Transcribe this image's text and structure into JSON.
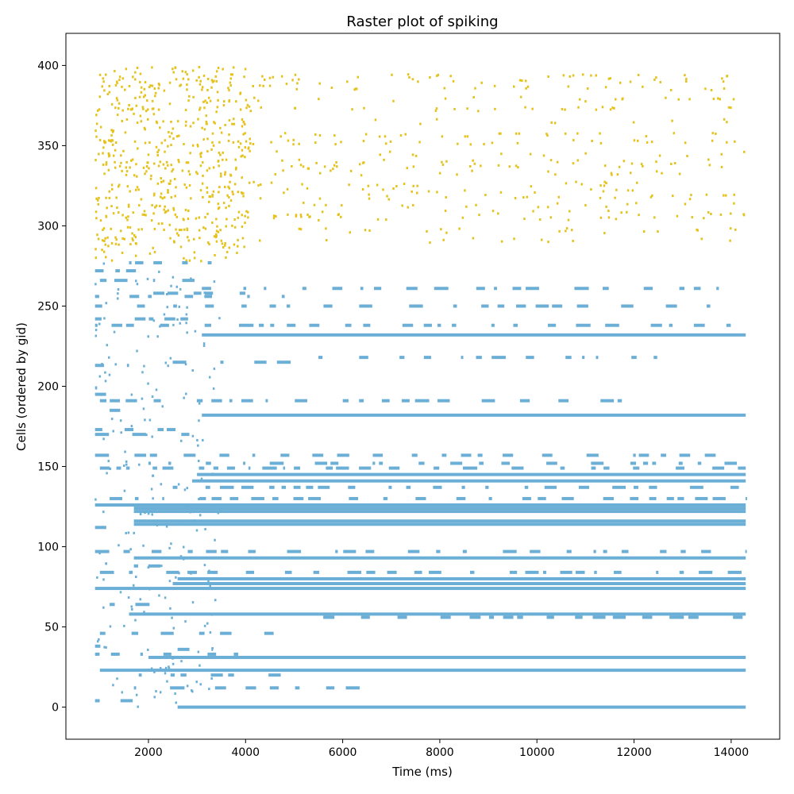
{
  "chart_data": {
    "type": "scatter",
    "title": "Raster plot of spiking",
    "xlabel": "Time (ms)",
    "ylabel": "Cells (ordered by gid)",
    "xlim": [
      300,
      15000
    ],
    "ylim": [
      -20,
      420
    ],
    "xticks": [
      2000,
      4000,
      6000,
      8000,
      10000,
      12000,
      14000
    ],
    "yticks": [
      0,
      50,
      100,
      150,
      200,
      250,
      300,
      350,
      400
    ],
    "grid": false,
    "colors": {
      "excitatory": "#e5c21c",
      "inhibitory": "#6baed6"
    },
    "series": [
      {
        "name": "Excitatory cells",
        "color": "#e5c21c",
        "gid_range": [
          278,
          399
        ],
        "time_range": [
          900,
          14300
        ],
        "style": "sparse scattered spikes"
      },
      {
        "name": "Inhibitory cells",
        "color": "#6baed6",
        "gid_range": [
          0,
          277
        ],
        "time_range": [
          900,
          14300
        ],
        "style": "dense spike trains forming horizontal bands",
        "continuous_trains": [
          {
            "gid": 0,
            "start": 2600,
            "end": 14300
          },
          {
            "gid": 23,
            "start": 1000,
            "end": 14300
          },
          {
            "gid": 31,
            "start": 2000,
            "end": 14300
          },
          {
            "gid": 58,
            "start": 1600,
            "end": 14300
          },
          {
            "gid": 74,
            "start": 900,
            "end": 14300
          },
          {
            "gid": 77,
            "start": 2500,
            "end": 14300
          },
          {
            "gid": 80,
            "start": 2600,
            "end": 14300
          },
          {
            "gid": 93,
            "start": 1700,
            "end": 14300
          },
          {
            "gid": 114,
            "start": 1700,
            "end": 14300
          },
          {
            "gid": 116,
            "start": 1700,
            "end": 14300
          },
          {
            "gid": 122,
            "start": 1700,
            "end": 14300
          },
          {
            "gid": 124,
            "start": 1700,
            "end": 14300
          },
          {
            "gid": 126,
            "start": 900,
            "end": 14300
          },
          {
            "gid": 141,
            "start": 2900,
            "end": 14300
          },
          {
            "gid": 145,
            "start": 3000,
            "end": 14300
          },
          {
            "gid": 182,
            "start": 3100,
            "end": 14300
          },
          {
            "gid": 232,
            "start": 3100,
            "end": 14300
          }
        ],
        "intermittent_trains": [
          {
            "gid": 4,
            "start": 900,
            "end": 2100
          },
          {
            "gid": 12,
            "start": 1700,
            "end": 6800
          },
          {
            "gid": 20,
            "start": 1800,
            "end": 5000
          },
          {
            "gid": 33,
            "start": 900,
            "end": 4000
          },
          {
            "gid": 36,
            "start": 2600,
            "end": 3300
          },
          {
            "gid": 38,
            "start": 900,
            "end": 1200
          },
          {
            "gid": 46,
            "start": 1000,
            "end": 4600
          },
          {
            "gid": 56,
            "start": 5600,
            "end": 14300
          },
          {
            "gid": 64,
            "start": 1200,
            "end": 2200
          },
          {
            "gid": 84,
            "start": 1000,
            "end": 14300
          },
          {
            "gid": 88,
            "start": 1700,
            "end": 2300
          },
          {
            "gid": 97,
            "start": 900,
            "end": 14300
          },
          {
            "gid": 112,
            "start": 900,
            "end": 1500
          },
          {
            "gid": 130,
            "start": 1200,
            "end": 14300
          },
          {
            "gid": 137,
            "start": 2500,
            "end": 14300
          },
          {
            "gid": 149,
            "start": 1000,
            "end": 14300
          },
          {
            "gid": 152,
            "start": 2000,
            "end": 14300
          },
          {
            "gid": 157,
            "start": 900,
            "end": 14300
          },
          {
            "gid": 170,
            "start": 900,
            "end": 3300
          },
          {
            "gid": 173,
            "start": 900,
            "end": 2700
          },
          {
            "gid": 185,
            "start": 1200,
            "end": 1600
          },
          {
            "gid": 191,
            "start": 1000,
            "end": 12000
          },
          {
            "gid": 195,
            "start": 900,
            "end": 1400
          },
          {
            "gid": 199,
            "start": 900,
            "end": 1200
          },
          {
            "gid": 213,
            "start": 900,
            "end": 1600
          },
          {
            "gid": 215,
            "start": 2500,
            "end": 5000
          },
          {
            "gid": 218,
            "start": 5500,
            "end": 12700
          },
          {
            "gid": 238,
            "start": 900,
            "end": 14300
          },
          {
            "gid": 242,
            "start": 900,
            "end": 3300
          },
          {
            "gid": 250,
            "start": 900,
            "end": 13800
          },
          {
            "gid": 256,
            "start": 900,
            "end": 5000
          },
          {
            "gid": 258,
            "start": 2100,
            "end": 4600
          },
          {
            "gid": 261,
            "start": 3100,
            "end": 13800
          },
          {
            "gid": 266,
            "start": 1000,
            "end": 3300
          },
          {
            "gid": 272,
            "start": 900,
            "end": 2300
          },
          {
            "gid": 277,
            "start": 1600,
            "end": 3300
          }
        ],
        "excitatory_dense_rows": [
          291,
          297,
          305,
          308,
          313,
          318,
          322,
          326,
          333,
          337,
          340,
          345,
          352,
          357,
          365,
          373,
          379,
          386,
          390,
          393
        ]
      }
    ]
  }
}
